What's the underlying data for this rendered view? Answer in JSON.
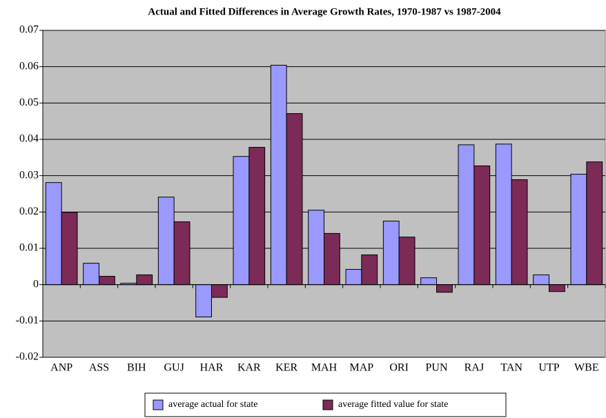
{
  "chart_data": {
    "type": "bar",
    "title": "Actual and Fitted Differences in Average Growth Rates, 1970-1987 vs 1987-2004",
    "categories": [
      "ANP",
      "ASS",
      "BIH",
      "GUJ",
      "HAR",
      "KAR",
      "KER",
      "MAH",
      "MAP",
      "ORI",
      "PUN",
      "RAJ",
      "TAN",
      "UTP",
      "WBE"
    ],
    "series": [
      {
        "name": "average actual for state",
        "color": "#9999ff",
        "values": [
          0.0281,
          0.0059,
          0.0004,
          0.0241,
          -0.0089,
          0.0353,
          0.0604,
          0.0205,
          0.0042,
          0.0175,
          0.0019,
          0.0385,
          0.0387,
          0.0027,
          0.0304
        ]
      },
      {
        "name": "average fitted value for state",
        "color": "#7b2b55",
        "values": [
          0.0199,
          0.0023,
          0.0027,
          0.0173,
          -0.0035,
          0.0378,
          0.0471,
          0.0141,
          0.0082,
          0.0131,
          -0.0021,
          0.0327,
          0.0289,
          -0.0019,
          0.0338
        ]
      }
    ],
    "ylim": [
      -0.02,
      0.07
    ],
    "yticks": [
      -0.02,
      -0.01,
      0,
      0.01,
      0.02,
      0.03,
      0.04,
      0.05,
      0.06,
      0.07
    ],
    "grid": true,
    "legend": "bottom",
    "background": "#c0c0c0"
  }
}
